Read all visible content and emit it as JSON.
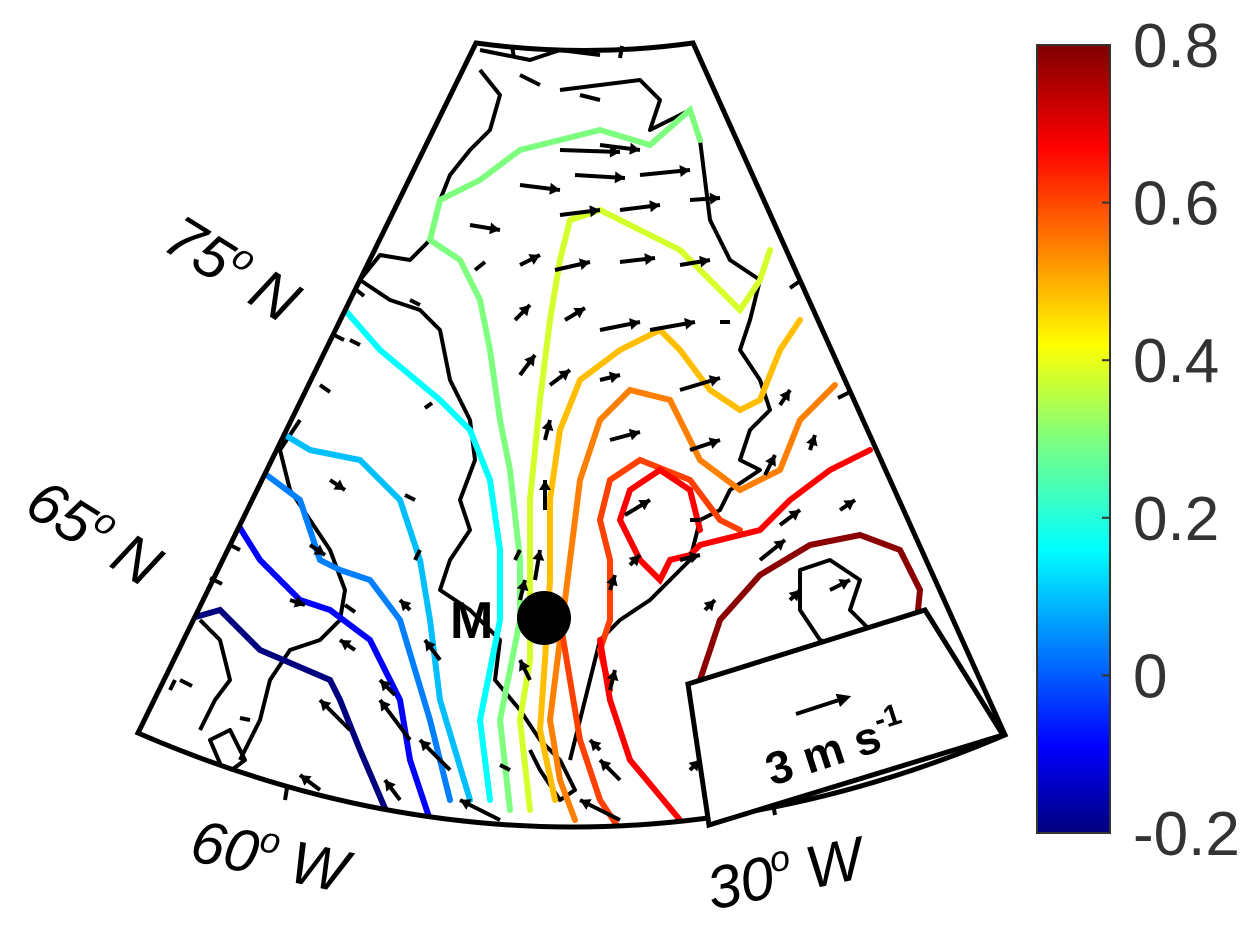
{
  "map": {
    "lat_labels": [
      {
        "deg": "75",
        "sup": "o",
        "hemi": "N"
      },
      {
        "deg": "65",
        "sup": "o",
        "hemi": "N"
      }
    ],
    "lon_labels": [
      {
        "deg": "60",
        "sup": "o",
        "hemi": "W"
      },
      {
        "deg": "30",
        "sup": "o",
        "hemi": "W"
      }
    ],
    "point_label": "M",
    "reference_vector": {
      "text": "3 m s",
      "superscript": "-1"
    }
  },
  "colorbar": {
    "min": -0.2,
    "max": 0.8,
    "ticks": [
      "0.8",
      "0.6",
      "0.4",
      "0.2",
      "0",
      "-0.2"
    ],
    "colormap": "jet",
    "colors": [
      "#00007f",
      "#0000ff",
      "#007fff",
      "#00ffff",
      "#7fff7f",
      "#ffff00",
      "#ff7f00",
      "#ff0000",
      "#7f0000"
    ]
  },
  "contours": {
    "levels": [
      -0.15,
      -0.1,
      0.0,
      0.1,
      0.2,
      0.3,
      0.4,
      0.5,
      0.55,
      0.6,
      0.65,
      0.7,
      0.75
    ]
  }
}
